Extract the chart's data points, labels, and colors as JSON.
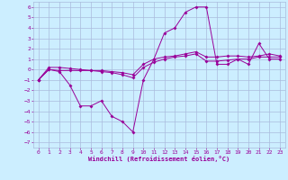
{
  "xlabel": "Windchill (Refroidissement éolien,°C)",
  "xlim": [
    -0.5,
    23.5
  ],
  "ylim": [
    -7.5,
    6.5
  ],
  "xticks": [
    0,
    1,
    2,
    3,
    4,
    5,
    6,
    7,
    8,
    9,
    10,
    11,
    12,
    13,
    14,
    15,
    16,
    17,
    18,
    19,
    20,
    21,
    22,
    23
  ],
  "yticks": [
    6,
    5,
    4,
    3,
    2,
    1,
    0,
    -1,
    -2,
    -3,
    -4,
    -5,
    -6,
    -7
  ],
  "background_color": "#cceeff",
  "grid_color": "#aabbdd",
  "line_color": "#990099",
  "line1_y": [
    -1,
    0,
    -0.2,
    -1.5,
    -3.5,
    -3.5,
    -3.0,
    -4.5,
    -5.0,
    -6.0,
    -1.0,
    1.0,
    3.5,
    4.0,
    5.5,
    6.0,
    6.0,
    0.5,
    0.5,
    1.0,
    0.5,
    2.5,
    1.0,
    1.0
  ],
  "line2_y": [
    -1,
    0,
    -0.1,
    -0.1,
    -0.1,
    -0.1,
    -0.2,
    -0.3,
    -0.5,
    -0.8,
    0.2,
    0.7,
    1.0,
    1.2,
    1.3,
    1.5,
    0.8,
    0.8,
    0.9,
    1.0,
    1.0,
    1.2,
    1.2,
    1.2
  ],
  "line3_y": [
    -1,
    0.2,
    0.2,
    0.1,
    0.0,
    -0.1,
    -0.1,
    -0.2,
    -0.3,
    -0.5,
    0.5,
    1.0,
    1.2,
    1.3,
    1.5,
    1.7,
    1.2,
    1.2,
    1.3,
    1.3,
    1.2,
    1.3,
    1.5,
    1.3
  ]
}
